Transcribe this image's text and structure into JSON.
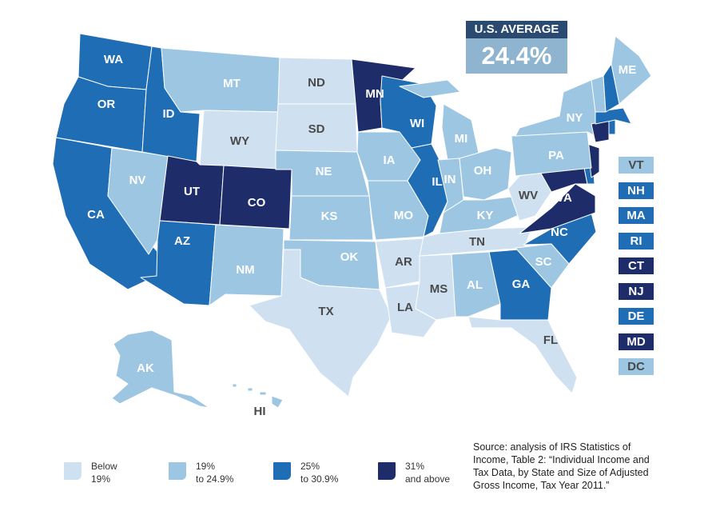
{
  "us_average": {
    "label": "U.S. AVERAGE",
    "value": "24.4%"
  },
  "colors": {
    "below_19": "#cfe1f1",
    "19_to_24_9": "#9cc6e2",
    "25_to_30_9": "#1f6db5",
    "31_and_above": "#1f2c6a",
    "label_dark": "#4a4a4a",
    "label_light": "#ffffff"
  },
  "legend": [
    {
      "tier": "below_19",
      "line1": "Below",
      "line2": "19%"
    },
    {
      "tier": "19_to_24_9",
      "line1": "19%",
      "line2": "to 24.9%"
    },
    {
      "tier": "25_to_30_9",
      "line1": "25%",
      "line2": "to 30.9%"
    },
    {
      "tier": "31_and_above",
      "line1": "31%",
      "line2": "and above"
    }
  ],
  "source": "Source: analysis of IRS Statistics of Income, Table 2: “Individual Income and Tax Data, by State and Size of Adjusted Gross Income, Tax Year 2011.”",
  "states": [
    {
      "abbr": "WA",
      "tier": "25_to_30_9"
    },
    {
      "abbr": "OR",
      "tier": "25_to_30_9"
    },
    {
      "abbr": "CA",
      "tier": "25_to_30_9"
    },
    {
      "abbr": "NV",
      "tier": "19_to_24_9"
    },
    {
      "abbr": "ID",
      "tier": "25_to_30_9"
    },
    {
      "abbr": "MT",
      "tier": "19_to_24_9"
    },
    {
      "abbr": "WY",
      "tier": "below_19"
    },
    {
      "abbr": "UT",
      "tier": "31_and_above"
    },
    {
      "abbr": "CO",
      "tier": "31_and_above"
    },
    {
      "abbr": "AZ",
      "tier": "25_to_30_9"
    },
    {
      "abbr": "NM",
      "tier": "19_to_24_9"
    },
    {
      "abbr": "ND",
      "tier": "below_19"
    },
    {
      "abbr": "SD",
      "tier": "below_19"
    },
    {
      "abbr": "NE",
      "tier": "19_to_24_9"
    },
    {
      "abbr": "KS",
      "tier": "19_to_24_9"
    },
    {
      "abbr": "OK",
      "tier": "19_to_24_9"
    },
    {
      "abbr": "TX",
      "tier": "below_19"
    },
    {
      "abbr": "MN",
      "tier": "31_and_above"
    },
    {
      "abbr": "IA",
      "tier": "19_to_24_9"
    },
    {
      "abbr": "MO",
      "tier": "19_to_24_9"
    },
    {
      "abbr": "AR",
      "tier": "below_19"
    },
    {
      "abbr": "LA",
      "tier": "below_19"
    },
    {
      "abbr": "WI",
      "tier": "25_to_30_9"
    },
    {
      "abbr": "IL",
      "tier": "25_to_30_9"
    },
    {
      "abbr": "MI",
      "tier": "19_to_24_9"
    },
    {
      "abbr": "IN",
      "tier": "19_to_24_9"
    },
    {
      "abbr": "OH",
      "tier": "19_to_24_9"
    },
    {
      "abbr": "KY",
      "tier": "19_to_24_9"
    },
    {
      "abbr": "TN",
      "tier": "below_19"
    },
    {
      "abbr": "MS",
      "tier": "below_19"
    },
    {
      "abbr": "AL",
      "tier": "19_to_24_9"
    },
    {
      "abbr": "GA",
      "tier": "25_to_30_9"
    },
    {
      "abbr": "FL",
      "tier": "below_19"
    },
    {
      "abbr": "SC",
      "tier": "19_to_24_9"
    },
    {
      "abbr": "NC",
      "tier": "25_to_30_9"
    },
    {
      "abbr": "VA",
      "tier": "31_and_above"
    },
    {
      "abbr": "WV",
      "tier": "below_19"
    },
    {
      "abbr": "MD",
      "tier": "31_and_above"
    },
    {
      "abbr": "DE",
      "tier": "25_to_30_9"
    },
    {
      "abbr": "NJ",
      "tier": "31_and_above"
    },
    {
      "abbr": "PA",
      "tier": "19_to_24_9"
    },
    {
      "abbr": "NY",
      "tier": "19_to_24_9"
    },
    {
      "abbr": "CT",
      "tier": "31_and_above"
    },
    {
      "abbr": "RI",
      "tier": "25_to_30_9"
    },
    {
      "abbr": "MA",
      "tier": "25_to_30_9"
    },
    {
      "abbr": "VT",
      "tier": "19_to_24_9"
    },
    {
      "abbr": "NH",
      "tier": "25_to_30_9"
    },
    {
      "abbr": "ME",
      "tier": "19_to_24_9"
    },
    {
      "abbr": "AK",
      "tier": "19_to_24_9"
    },
    {
      "abbr": "HI",
      "tier": "19_to_24_9"
    },
    {
      "abbr": "DC",
      "tier": "19_to_24_9"
    }
  ],
  "small_state_keys": [
    "VT",
    "NH",
    "MA",
    "RI",
    "CT",
    "NJ",
    "DE",
    "MD",
    "DC"
  ]
}
